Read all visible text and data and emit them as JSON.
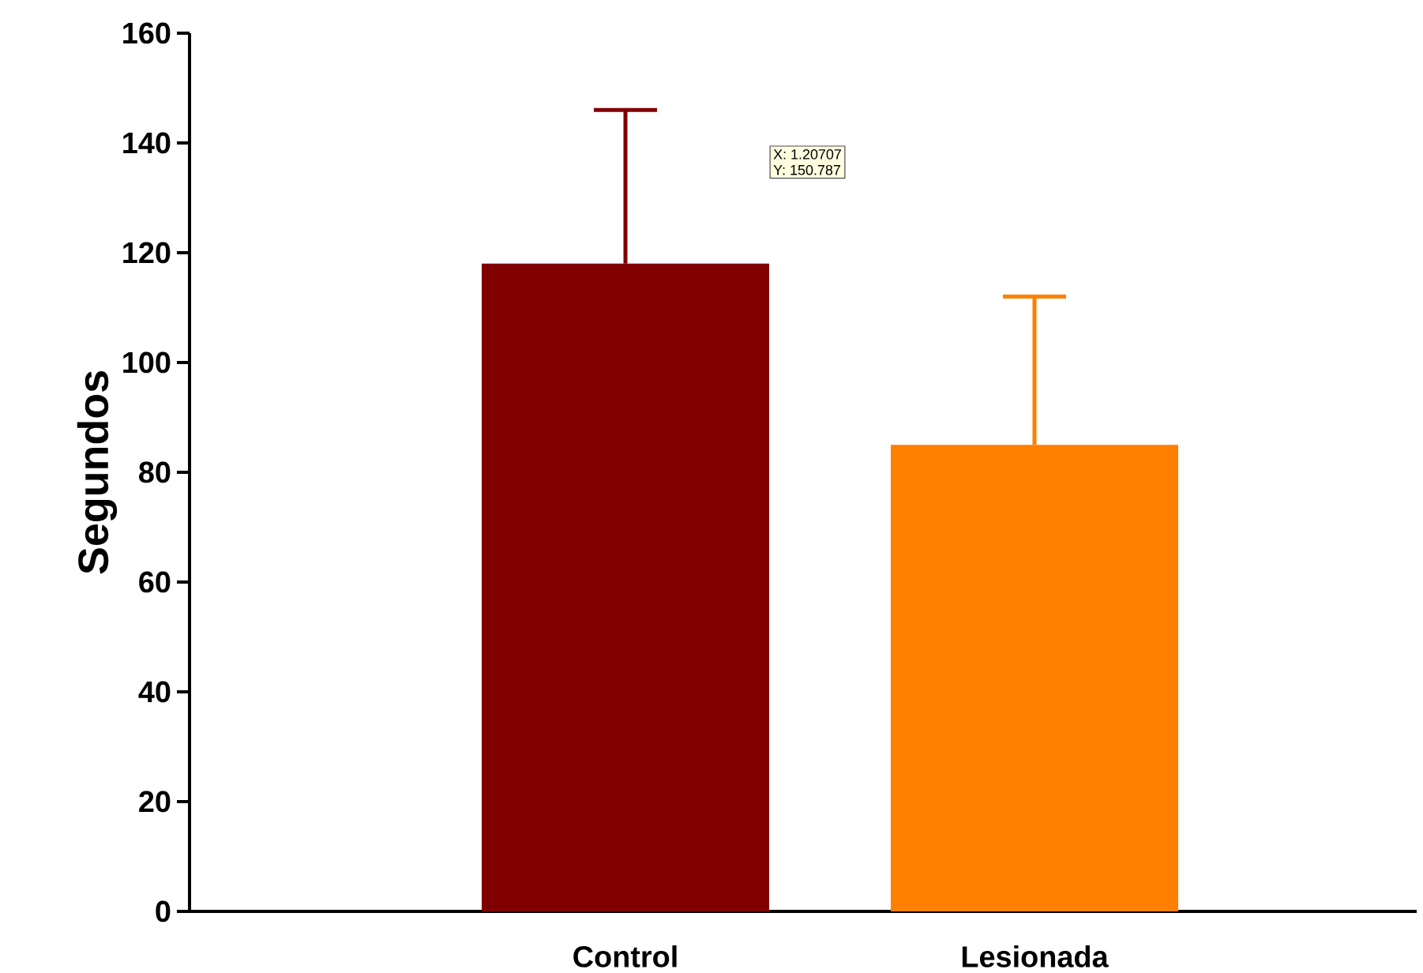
{
  "chart_data": {
    "type": "bar",
    "ylabel": "Segundos",
    "categories": [
      "Control",
      "Lesionada"
    ],
    "values": [
      118,
      85
    ],
    "colors": [
      "#800000",
      "#ff8000"
    ],
    "errors": [
      [
        118,
        146
      ],
      [
        85,
        112
      ]
    ],
    "ylim": [
      0,
      160
    ],
    "yticks": [
      0,
      20,
      40,
      60,
      80,
      100,
      120,
      140,
      160
    ],
    "annotations": [
      "X:        1.20707",
      "Y:        150.787"
    ],
    "grid": false
  }
}
